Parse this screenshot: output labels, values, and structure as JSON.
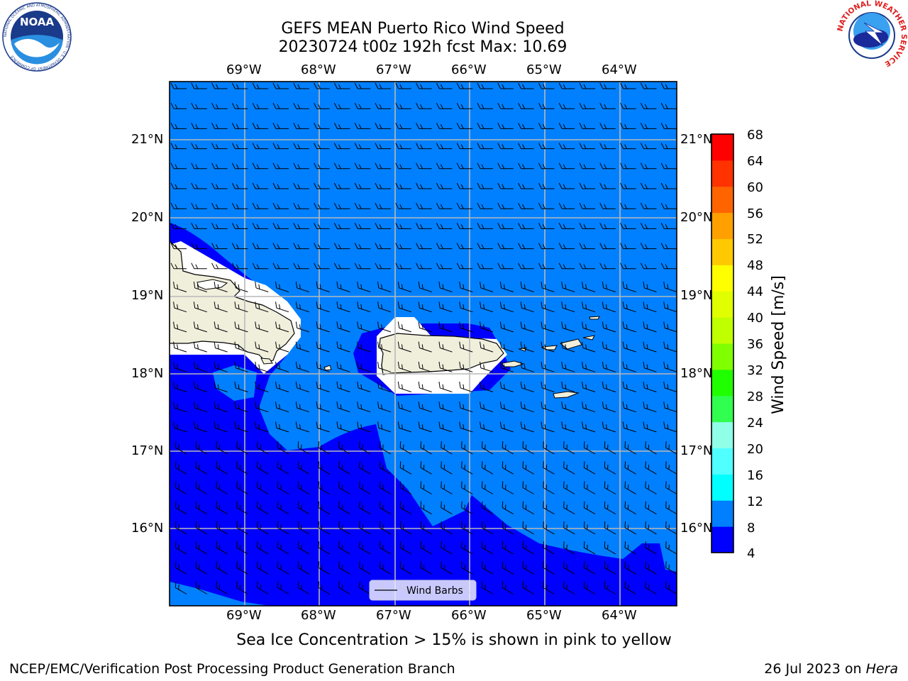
{
  "header": {
    "title_line1": "GEFS MEAN Puerto Rico Wind Speed",
    "title_line2": "20230724 t00z 192h fcst   Max: 10.69"
  },
  "logos": {
    "noaa_text": "NOAA",
    "noaa_ring_text": "NATIONAL OCEANIC AND ATMOSPHERIC ADMINISTRATION · U.S. DEPARTMENT OF COMMERCE",
    "nws_ring_text": "NATIONAL WEATHER SERVICE"
  },
  "map": {
    "lon_labels": [
      "69°W",
      "68°W",
      "67°W",
      "66°W",
      "65°W",
      "64°W"
    ],
    "lat_labels": [
      "21°N",
      "20°N",
      "19°N",
      "18°N",
      "17°N",
      "16°N"
    ],
    "legend_label": "Wind Barbs",
    "colors": {
      "ocean_low": "#0000ff",
      "ocean_mid": "#0080ff",
      "land": "#f0efdc",
      "mask": "#ffffff"
    }
  },
  "colorbar": {
    "label": "Wind Speed [m/s]",
    "ticks": [
      "68",
      "64",
      "60",
      "56",
      "52",
      "48",
      "44",
      "40",
      "36",
      "32",
      "28",
      "24",
      "20",
      "16",
      "12",
      "8",
      "4"
    ],
    "colors": [
      "#0000ff",
      "#0080ff",
      "#00ffff",
      "#50ffff",
      "#90ffe8",
      "#30ff50",
      "#20ff00",
      "#80ff00",
      "#c0ff00",
      "#e0ff00",
      "#ffff00",
      "#ffc800",
      "#ffa000",
      "#ff6400",
      "#ff3200",
      "#ff0000"
    ]
  },
  "caption": "Sea Ice Concentration > 15% is shown in pink to yellow",
  "footer": {
    "left": "NCEP/EMC/Verification Post Processing Product Generation Branch",
    "right_prefix": "26 Jul 2023 on ",
    "right_machine": "Hera"
  }
}
